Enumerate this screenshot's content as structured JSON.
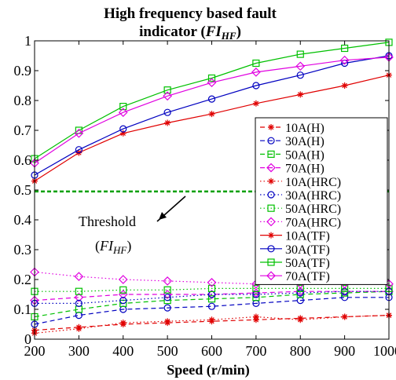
{
  "chart_data": {
    "type": "line",
    "title_lines": [
      "High frequency based fault",
      "indicator ("
    ],
    "title_symbol": "FI",
    "title_subscript": "HF",
    "title_tail": ")",
    "xlabel": "Speed (r/min)",
    "ylabel": "",
    "x": [
      200,
      300,
      400,
      500,
      600,
      700,
      800,
      900,
      1000
    ],
    "xlim": [
      200,
      1000
    ],
    "ylim": [
      0,
      1
    ],
    "xticks": [
      "200",
      "300",
      "400",
      "500",
      "600",
      "700",
      "800",
      "900",
      "1000"
    ],
    "yticks": [
      "0",
      "0.1",
      "0.2",
      "0.3",
      "0.4",
      "0.5",
      "0.6",
      "0.7",
      "0.8",
      "0.9",
      "1"
    ],
    "grid": false,
    "legend_position": "right",
    "threshold": {
      "value": 0.495,
      "color": "#00a000",
      "label": "Threshold",
      "symbol": "FI",
      "subscript": "HF"
    },
    "series": [
      {
        "name": "10A(H)",
        "color": "#e00000",
        "marker": "star",
        "dash": "dash",
        "values": [
          0.03,
          0.04,
          0.05,
          0.055,
          0.06,
          0.065,
          0.07,
          0.075,
          0.08
        ]
      },
      {
        "name": "30A(H)",
        "color": "#0000c0",
        "marker": "circle",
        "dash": "dash",
        "values": [
          0.05,
          0.08,
          0.1,
          0.105,
          0.11,
          0.12,
          0.13,
          0.14,
          0.14
        ]
      },
      {
        "name": "50A(H)",
        "color": "#00c000",
        "marker": "square",
        "dash": "dash",
        "values": [
          0.075,
          0.1,
          0.12,
          0.13,
          0.135,
          0.14,
          0.15,
          0.155,
          0.16
        ]
      },
      {
        "name": "70A(H)",
        "color": "#e000e0",
        "marker": "diamond",
        "dash": "dash",
        "values": [
          0.13,
          0.14,
          0.15,
          0.15,
          0.15,
          0.155,
          0.16,
          0.16,
          0.16
        ]
      },
      {
        "name": "10A(HRC)",
        "color": "#e00000",
        "marker": "star",
        "dash": "dot",
        "values": [
          0.02,
          0.035,
          0.055,
          0.06,
          0.065,
          0.075,
          0.065,
          0.075,
          0.08
        ]
      },
      {
        "name": "30A(HRC)",
        "color": "#0000c0",
        "marker": "circle",
        "dash": "dot",
        "values": [
          0.12,
          0.12,
          0.13,
          0.14,
          0.15,
          0.15,
          0.155,
          0.16,
          0.16
        ]
      },
      {
        "name": "50A(HRC)",
        "color": "#00c000",
        "marker": "square",
        "dash": "dot",
        "values": [
          0.16,
          0.16,
          0.165,
          0.165,
          0.17,
          0.17,
          0.17,
          0.17,
          0.17
        ]
      },
      {
        "name": "70A(HRC)",
        "color": "#e000e0",
        "marker": "diamond",
        "dash": "dot",
        "values": [
          0.225,
          0.21,
          0.2,
          0.195,
          0.19,
          0.185,
          0.185,
          0.185,
          0.185
        ]
      },
      {
        "name": "10A(TF)",
        "color": "#e00000",
        "marker": "star",
        "dash": "solid",
        "values": [
          0.53,
          0.625,
          0.69,
          0.725,
          0.755,
          0.79,
          0.82,
          0.85,
          0.885
        ]
      },
      {
        "name": "30A(TF)",
        "color": "#0000c0",
        "marker": "circle",
        "dash": "solid",
        "values": [
          0.55,
          0.635,
          0.705,
          0.76,
          0.805,
          0.85,
          0.885,
          0.925,
          0.95
        ]
      },
      {
        "name": "50A(TF)",
        "color": "#00c000",
        "marker": "square",
        "dash": "solid",
        "values": [
          0.605,
          0.7,
          0.78,
          0.835,
          0.875,
          0.925,
          0.955,
          0.975,
          0.995
        ]
      },
      {
        "name": "70A(TF)",
        "color": "#e000e0",
        "marker": "diamond",
        "dash": "solid",
        "values": [
          0.59,
          0.69,
          0.76,
          0.815,
          0.86,
          0.895,
          0.915,
          0.935,
          0.945
        ]
      }
    ]
  }
}
